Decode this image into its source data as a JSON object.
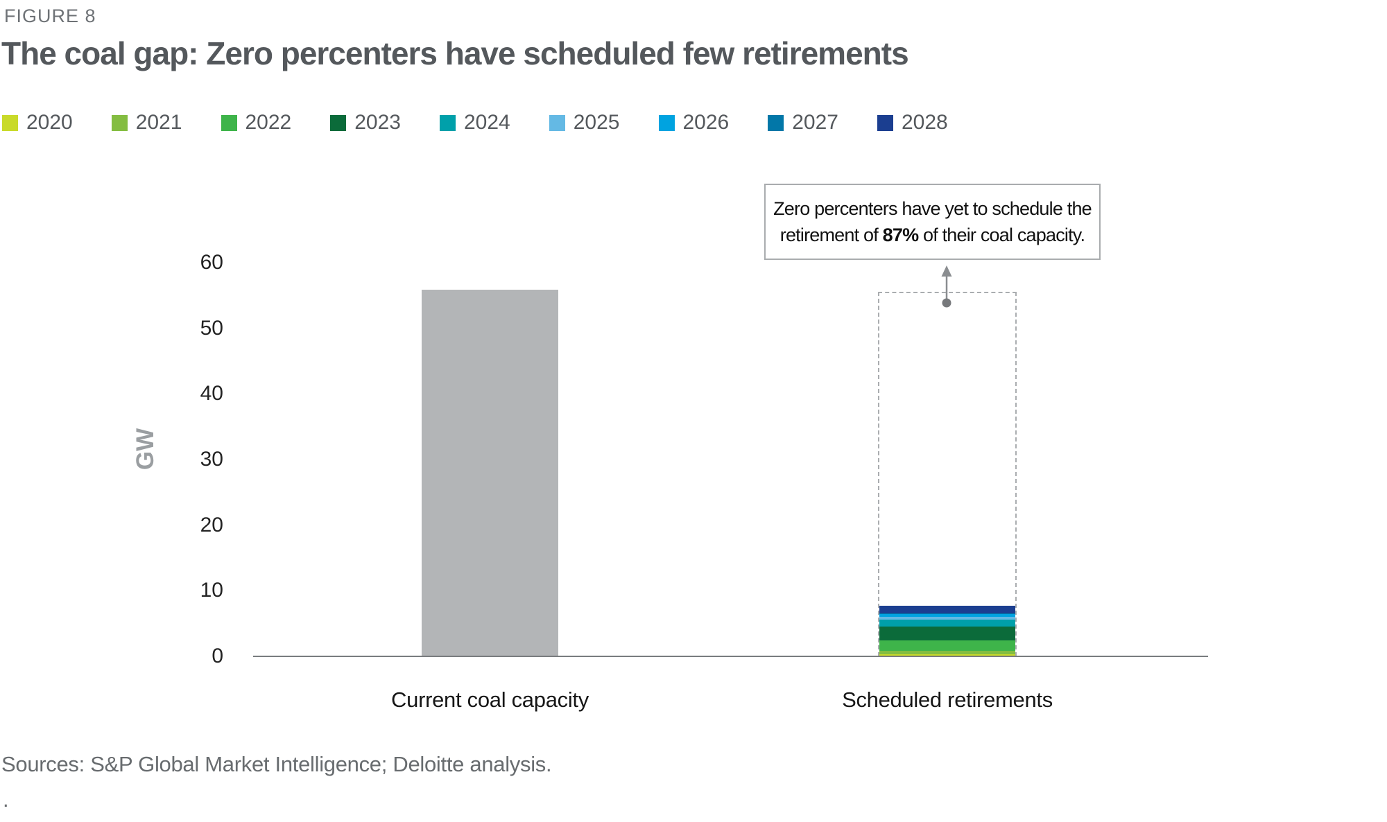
{
  "figure_label": "FIGURE 8",
  "title": "The coal gap: Zero percenters have scheduled few retirements",
  "legend": {
    "items": [
      {
        "label": "2020",
        "color": "#c9da2a"
      },
      {
        "label": "2021",
        "color": "#84bd41"
      },
      {
        "label": "2022",
        "color": "#3eb44a"
      },
      {
        "label": "2023",
        "color": "#0b6b3a"
      },
      {
        "label": "2024",
        "color": "#00a0aa"
      },
      {
        "label": "2025",
        "color": "#64b9e4"
      },
      {
        "label": "2026",
        "color": "#00a3e0"
      },
      {
        "label": "2027",
        "color": "#0277a8"
      },
      {
        "label": "2028",
        "color": "#1b3e90"
      }
    ]
  },
  "annotation": {
    "line1": "Zero percenters have yet to schedule the",
    "line2_pre": "retirement of ",
    "line2_bold": "87%",
    "line2_post": " of their coal capacity."
  },
  "axis": {
    "y_label": "GW",
    "y_ticks": [
      0,
      10,
      20,
      30,
      40,
      50,
      60
    ],
    "y_max": 60
  },
  "sources": "Sources: S&P Global Market Intelligence; Deloitte analysis.",
  "footnote": ".",
  "chart_data": {
    "type": "bar",
    "subtype": "stacked",
    "title": "The coal gap: Zero percenters have scheduled few retirements",
    "ylabel": "GW",
    "ylim": [
      0,
      60
    ],
    "grid": false,
    "legend_position": "top",
    "categories": [
      "Current coal capacity",
      "Scheduled retirements"
    ],
    "bars": [
      {
        "category": "Current coal capacity",
        "total": 55.9,
        "segments": [
          {
            "label": "Current coal capacity",
            "value": 55.9,
            "color": "#b3b5b7"
          }
        ]
      },
      {
        "category": "Scheduled retirements",
        "total": 7.7,
        "dashed_outline_value": 55.6,
        "unscheduled_share_label": "87%",
        "segments": [
          {
            "label": "2020",
            "value": 0.3,
            "color": "#c9da2a"
          },
          {
            "label": "2021",
            "value": 0.5,
            "color": "#84bd41"
          },
          {
            "label": "2022",
            "value": 1.6,
            "color": "#3eb44a"
          },
          {
            "label": "2023",
            "value": 2.1,
            "color": "#0b6b3a"
          },
          {
            "label": "2024",
            "value": 1.05,
            "color": "#00a0aa"
          },
          {
            "label": "2025",
            "value": 0.45,
            "color": "#64b9e4"
          },
          {
            "label": "2026",
            "value": 0.4,
            "color": "#00a3e0"
          },
          {
            "label": "2027",
            "value": 0.15,
            "color": "#0277a8"
          },
          {
            "label": "2028",
            "value": 1.15,
            "color": "#1b3e90"
          }
        ]
      }
    ]
  }
}
